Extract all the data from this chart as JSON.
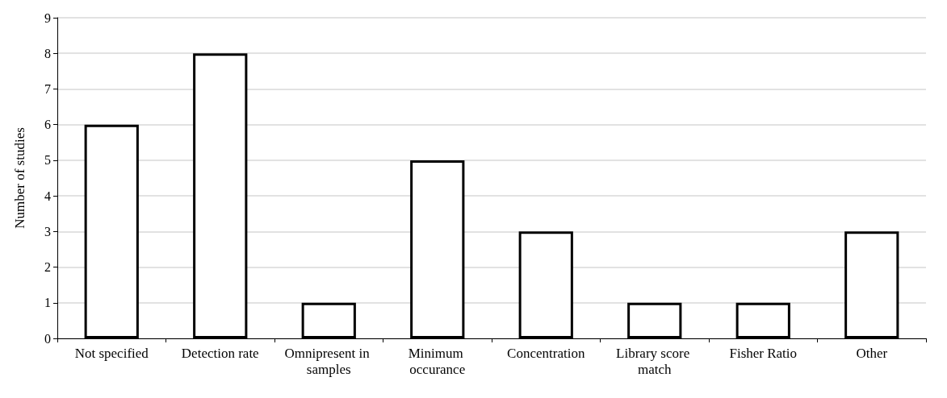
{
  "chart_data": {
    "type": "bar",
    "ylabel": "Number of studies",
    "categories": [
      "Not specified",
      "Detection rate",
      "Omnipresent in samples",
      "Minimum occurance",
      "Concentration",
      "Library score match",
      "Fisher Ratio",
      "Other"
    ],
    "values": [
      6,
      8,
      1,
      5,
      3,
      1,
      1,
      3
    ],
    "color": "#ffffff",
    "ylim": [
      0,
      9
    ],
    "yticks": [
      0,
      1,
      2,
      3,
      4,
      5,
      6,
      7,
      8,
      9
    ],
    "grid": "y"
  }
}
